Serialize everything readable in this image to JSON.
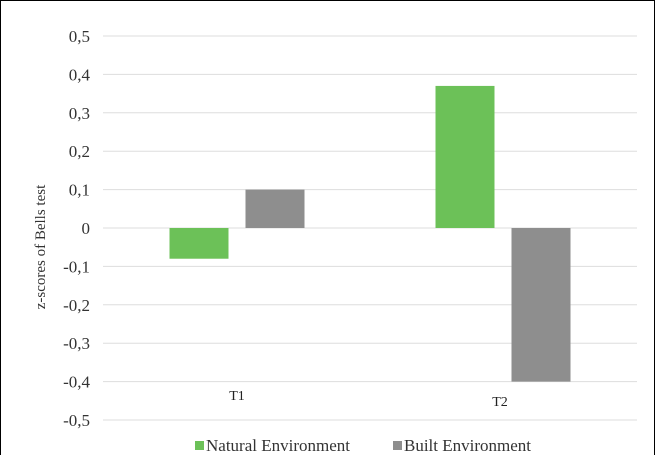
{
  "chart_data": {
    "type": "bar",
    "categories": [
      "T1",
      "T2"
    ],
    "series": [
      {
        "name": "Natural Environment",
        "values": [
          -0.08,
          0.37
        ],
        "color": "#6cc158"
      },
      {
        "name": "Built Environment",
        "values": [
          0.1,
          -0.4
        ],
        "color": "#8e8e8e"
      }
    ],
    "ylabel": "z-scores of Bells test",
    "ylim": [
      -0.5,
      0.5
    ],
    "yticks": [
      0.5,
      0.4,
      0.3,
      0.2,
      0.1,
      0,
      -0.1,
      -0.2,
      -0.3,
      -0.4,
      -0.5
    ],
    "ytick_labels": [
      "0,5",
      "0,4",
      "0,3",
      "0,2",
      "0,1",
      "0",
      "-0,1",
      "-0,2",
      "-0,3",
      "-0,4",
      "-0,5"
    ],
    "grid": true,
    "legend_position": "bottom"
  }
}
